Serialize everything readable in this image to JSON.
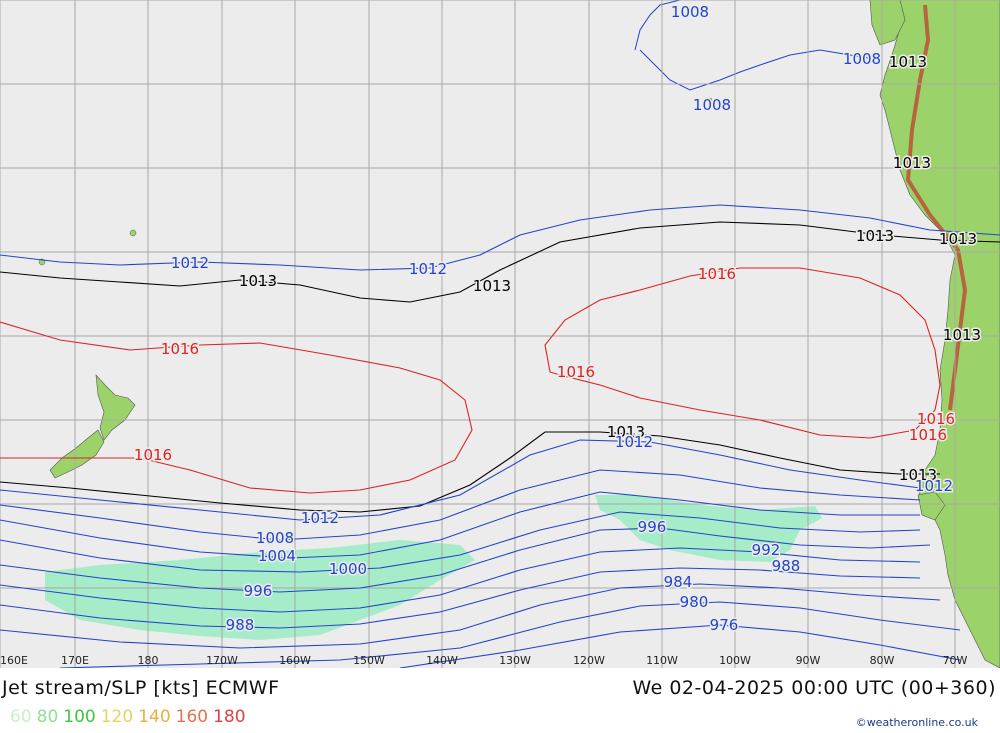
{
  "footer": {
    "title": "Jet stream/SLP [kts] ECMWF",
    "datetime": "We 02-04-2025 00:00 UTC (00+360)",
    "credit": "©weatheronline.co.uk"
  },
  "legend": [
    {
      "value": "60",
      "color": "#c8f0c8"
    },
    {
      "value": "80",
      "color": "#8fe08f"
    },
    {
      "value": "100",
      "color": "#3cc83c"
    },
    {
      "value": "120",
      "color": "#e8d060"
    },
    {
      "value": "140",
      "color": "#e8b040"
    },
    {
      "value": "160",
      "color": "#e87050"
    },
    {
      "value": "180",
      "color": "#e04040"
    }
  ],
  "longitude_labels": [
    "160E",
    "170E",
    "180",
    "170W",
    "160W",
    "150W",
    "140W",
    "130W",
    "120W",
    "110W",
    "100W",
    "90W",
    "80W",
    "70W"
  ],
  "isobar_labels": [
    {
      "text": "1008",
      "color": "#2244cc"
    },
    {
      "text": "1008",
      "color": "#2244cc"
    },
    {
      "text": "1008",
      "color": "#2244cc"
    },
    {
      "text": "1013",
      "color": "#000000"
    },
    {
      "text": "1013",
      "color": "#000000"
    },
    {
      "text": "1013",
      "color": "#000000"
    },
    {
      "text": "1013",
      "color": "#000000"
    },
    {
      "text": "1013",
      "color": "#000000"
    },
    {
      "text": "1013",
      "color": "#000000"
    },
    {
      "text": "1013",
      "color": "#000000"
    },
    {
      "text": "1013",
      "color": "#000000"
    },
    {
      "text": "1013",
      "color": "#000000"
    },
    {
      "text": "1012",
      "color": "#2244cc"
    },
    {
      "text": "1012",
      "color": "#2244cc"
    },
    {
      "text": "1012",
      "color": "#2244cc"
    },
    {
      "text": "1012",
      "color": "#2244cc"
    },
    {
      "text": "1012",
      "color": "#2244cc"
    },
    {
      "text": "1016",
      "color": "#dd2222"
    },
    {
      "text": "1016",
      "color": "#dd2222"
    },
    {
      "text": "1016",
      "color": "#dd2222"
    },
    {
      "text": "1016",
      "color": "#dd2222"
    },
    {
      "text": "1016",
      "color": "#dd2222"
    },
    {
      "text": "1016",
      "color": "#dd2222"
    },
    {
      "text": "1008",
      "color": "#2244cc"
    },
    {
      "text": "1004",
      "color": "#2244cc"
    },
    {
      "text": "1000",
      "color": "#2244cc"
    },
    {
      "text": "996",
      "color": "#2244cc"
    },
    {
      "text": "988",
      "color": "#2244cc"
    },
    {
      "text": "996",
      "color": "#2244cc"
    },
    {
      "text": "992",
      "color": "#2244cc"
    },
    {
      "text": "988",
      "color": "#2244cc"
    },
    {
      "text": "984",
      "color": "#2244cc"
    },
    {
      "text": "980",
      "color": "#2244cc"
    },
    {
      "text": "976",
      "color": "#2244cc"
    }
  ],
  "colors": {
    "ocean": "#ececec",
    "land": "#9bd36a",
    "grid": "#a8a8a8",
    "jet": "#a6ecc8"
  }
}
